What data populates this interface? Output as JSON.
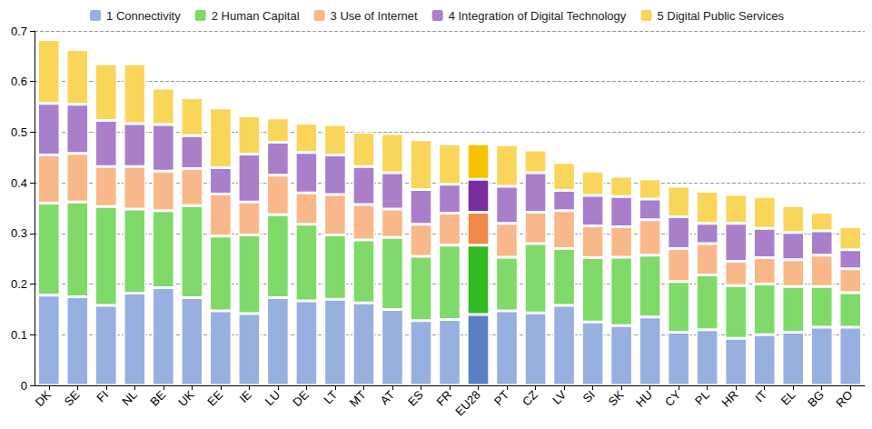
{
  "chart_data": {
    "type": "bar",
    "stacked": true,
    "grid": true,
    "legend": "top",
    "categories": [
      "DK",
      "SE",
      "FI",
      "NL",
      "BE",
      "UK",
      "EE",
      "IE",
      "LU",
      "DE",
      "LT",
      "MT",
      "AT",
      "ES",
      "FR",
      "EU28",
      "PT",
      "CZ",
      "LV",
      "SI",
      "SK",
      "HU",
      "CY",
      "PL",
      "HR",
      "IT",
      "EL",
      "BG",
      "RO"
    ],
    "ylim": [
      0,
      0.7
    ],
    "yticks": [
      0,
      0.1,
      0.2,
      0.3,
      0.4,
      0.5,
      0.6,
      0.7
    ],
    "series": [
      {
        "name": "1 Connectivity",
        "color": "#97b0e0",
        "colors": [
          "#97b0e0",
          "#97b0e0",
          "#97b0e0",
          "#97b0e0",
          "#97b0e0",
          "#97b0e0",
          "#97b0e0",
          "#97b0e0",
          "#97b0e0",
          "#97b0e0",
          "#97b0e0",
          "#97b0e0",
          "#97b0e0",
          "#97b0e0",
          "#97b0e0",
          "#5b7fc7",
          "#97b0e0",
          "#97b0e0",
          "#97b0e0",
          "#97b0e0",
          "#97b0e0",
          "#97b0e0",
          "#97b0e0",
          "#97b0e0",
          "#97b0e0",
          "#97b0e0",
          "#97b0e0",
          "#97b0e0",
          "#97b0e0"
        ],
        "values": [
          0.178,
          0.175,
          0.158,
          0.182,
          0.193,
          0.173,
          0.147,
          0.142,
          0.173,
          0.167,
          0.17,
          0.163,
          0.15,
          0.128,
          0.13,
          0.14,
          0.147,
          0.143,
          0.158,
          0.125,
          0.118,
          0.135,
          0.105,
          0.11,
          0.093,
          0.1,
          0.105,
          0.115,
          0.115
        ]
      },
      {
        "name": "2 Human Capital",
        "color": "#7fda6a",
        "colors": [
          "#7fda6a",
          "#7fda6a",
          "#7fda6a",
          "#7fda6a",
          "#7fda6a",
          "#7fda6a",
          "#7fda6a",
          "#7fda6a",
          "#7fda6a",
          "#7fda6a",
          "#7fda6a",
          "#7fda6a",
          "#7fda6a",
          "#7fda6a",
          "#7fda6a",
          "#33bb22",
          "#7fda6a",
          "#7fda6a",
          "#7fda6a",
          "#7fda6a",
          "#7fda6a",
          "#7fda6a",
          "#7fda6a",
          "#7fda6a",
          "#7fda6a",
          "#7fda6a",
          "#7fda6a",
          "#7fda6a",
          "#7fda6a"
        ],
        "values": [
          0.182,
          0.187,
          0.195,
          0.166,
          0.152,
          0.182,
          0.148,
          0.155,
          0.164,
          0.151,
          0.127,
          0.124,
          0.142,
          0.127,
          0.147,
          0.137,
          0.106,
          0.137,
          0.112,
          0.127,
          0.135,
          0.122,
          0.1,
          0.108,
          0.104,
          0.1,
          0.09,
          0.08,
          0.068
        ]
      },
      {
        "name": "3 Use of Internet",
        "color": "#f8b88a",
        "colors": [
          "#f8b88a",
          "#f8b88a",
          "#f8b88a",
          "#f8b88a",
          "#f8b88a",
          "#f8b88a",
          "#f8b88a",
          "#f8b88a",
          "#f8b88a",
          "#f8b88a",
          "#f8b88a",
          "#f8b88a",
          "#f8b88a",
          "#f8b88a",
          "#f8b88a",
          "#f08a4b",
          "#f8b88a",
          "#f8b88a",
          "#f8b88a",
          "#f8b88a",
          "#f8b88a",
          "#f8b88a",
          "#f8b88a",
          "#f8b88a",
          "#f8b88a",
          "#f8b88a",
          "#f8b88a",
          "#f8b88a",
          "#f8b88a"
        ],
        "values": [
          0.095,
          0.096,
          0.079,
          0.084,
          0.078,
          0.073,
          0.083,
          0.065,
          0.078,
          0.062,
          0.08,
          0.07,
          0.056,
          0.063,
          0.063,
          0.065,
          0.067,
          0.062,
          0.075,
          0.063,
          0.06,
          0.07,
          0.065,
          0.062,
          0.048,
          0.052,
          0.053,
          0.062,
          0.047
        ]
      },
      {
        "name": "4 Integration of Digital Technology",
        "color": "#a97fc9",
        "colors": [
          "#a97fc9",
          "#a97fc9",
          "#a97fc9",
          "#a97fc9",
          "#a97fc9",
          "#a97fc9",
          "#a97fc9",
          "#a97fc9",
          "#a97fc9",
          "#a97fc9",
          "#a97fc9",
          "#a97fc9",
          "#a97fc9",
          "#a97fc9",
          "#a97fc9",
          "#7a2e9e",
          "#a97fc9",
          "#a97fc9",
          "#a97fc9",
          "#a97fc9",
          "#a97fc9",
          "#a97fc9",
          "#a97fc9",
          "#a97fc9",
          "#a97fc9",
          "#a97fc9",
          "#a97fc9",
          "#a97fc9",
          "#a97fc9"
        ],
        "values": [
          0.102,
          0.097,
          0.091,
          0.085,
          0.092,
          0.065,
          0.052,
          0.095,
          0.065,
          0.08,
          0.078,
          0.075,
          0.072,
          0.069,
          0.057,
          0.065,
          0.073,
          0.078,
          0.04,
          0.06,
          0.06,
          0.041,
          0.063,
          0.04,
          0.075,
          0.058,
          0.054,
          0.048,
          0.038
        ]
      },
      {
        "name": "5 Digital Public Services",
        "color": "#f9d65a",
        "colors": [
          "#f9d65a",
          "#f9d65a",
          "#f9d65a",
          "#f9d65a",
          "#f9d65a",
          "#f9d65a",
          "#f9d65a",
          "#f9d65a",
          "#f9d65a",
          "#f9d65a",
          "#f9d65a",
          "#f9d65a",
          "#f9d65a",
          "#f9d65a",
          "#f9d65a",
          "#f7c200",
          "#f9d65a",
          "#f9d65a",
          "#f9d65a",
          "#f9d65a",
          "#f9d65a",
          "#f9d65a",
          "#f9d65a",
          "#f9d65a",
          "#f9d65a",
          "#f9d65a",
          "#f9d65a",
          "#f9d65a",
          "#f9d65a"
        ],
        "values": [
          0.126,
          0.108,
          0.112,
          0.118,
          0.072,
          0.075,
          0.118,
          0.075,
          0.048,
          0.058,
          0.06,
          0.068,
          0.077,
          0.098,
          0.08,
          0.07,
          0.082,
          0.045,
          0.055,
          0.048,
          0.04,
          0.04,
          0.06,
          0.063,
          0.057,
          0.063,
          0.053,
          0.037,
          0.045
        ]
      }
    ]
  }
}
